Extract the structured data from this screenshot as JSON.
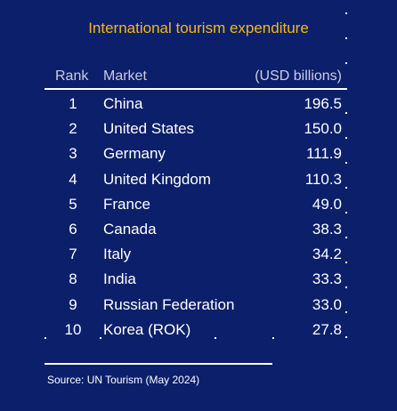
{
  "chart_data": {
    "type": "table",
    "title": "International tourism expenditure",
    "columns": [
      "Rank",
      "Market",
      "(USD billions)"
    ],
    "rows": [
      {
        "rank": "1",
        "market": "China",
        "value": "196.5"
      },
      {
        "rank": "2",
        "market": "United States",
        "value": "150.0"
      },
      {
        "rank": "3",
        "market": "Germany",
        "value": "111.9"
      },
      {
        "rank": "4",
        "market": "United Kingdom",
        "value": "110.3"
      },
      {
        "rank": "5",
        "market": "France",
        "value": "49.0"
      },
      {
        "rank": "6",
        "market": "Canada",
        "value": "38.3"
      },
      {
        "rank": "7",
        "market": "Italy",
        "value": "34.2"
      },
      {
        "rank": "8",
        "market": "India",
        "value": "33.3"
      },
      {
        "rank": "9",
        "market": "Russian Federation",
        "value": "33.0"
      },
      {
        "rank": "10",
        "market": "Korea (ROK)",
        "value": "27.8"
      }
    ],
    "source": "Source: UN Tourism (May 2024)"
  },
  "colors": {
    "background": "#0c1f6b",
    "title": "#f5b81a",
    "text": "#ffffff"
  }
}
